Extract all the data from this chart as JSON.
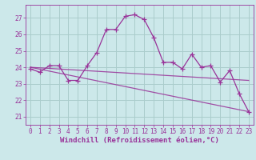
{
  "xlabel": "Windchill (Refroidissement éolien,°C)",
  "ylabel": "",
  "bg_color": "#cce8ea",
  "grid_color": "#aacccc",
  "line_color": "#993399",
  "x_ticks": [
    0,
    1,
    2,
    3,
    4,
    5,
    6,
    7,
    8,
    9,
    10,
    11,
    12,
    13,
    14,
    15,
    16,
    17,
    18,
    19,
    20,
    21,
    22,
    23
  ],
  "y_ticks": [
    21,
    22,
    23,
    24,
    25,
    26,
    27
  ],
  "ylim": [
    20.5,
    27.8
  ],
  "xlim": [
    -0.5,
    23.5
  ],
  "line1_x": [
    0,
    1,
    2,
    3,
    4,
    5,
    6,
    7,
    8,
    9,
    10,
    11,
    12,
    13,
    14,
    15,
    16,
    17,
    18,
    19,
    20,
    21,
    22,
    23
  ],
  "line1_y": [
    23.9,
    23.7,
    24.1,
    24.1,
    23.2,
    23.2,
    24.1,
    24.9,
    26.3,
    26.3,
    27.1,
    27.2,
    26.9,
    25.8,
    24.3,
    24.3,
    23.9,
    24.8,
    24.0,
    24.1,
    23.1,
    23.8,
    22.4,
    21.3
  ],
  "line2_x": [
    0,
    23
  ],
  "line2_y": [
    24.0,
    23.2
  ],
  "line3_x": [
    0,
    23
  ],
  "line3_y": [
    24.0,
    21.3
  ],
  "font_size_label": 6.5,
  "font_size_tick": 5.5,
  "marker_size": 2.0,
  "line_width": 0.9
}
